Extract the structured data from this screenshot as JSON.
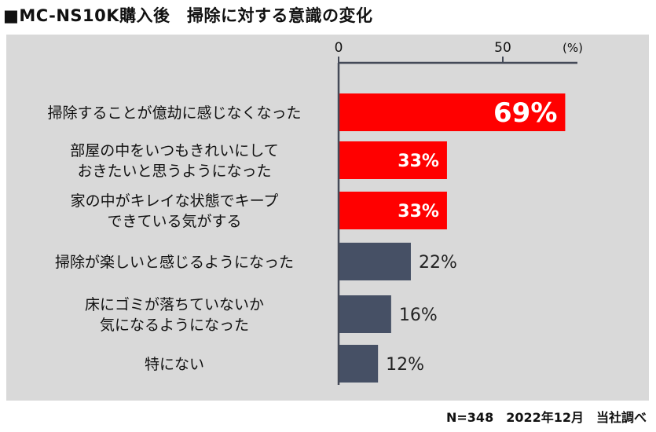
{
  "title": "■MC-NS10K購入後　掃除に対する意識の変化",
  "footnote": "N=348　2022年12月　当社調べ",
  "colors": {
    "highlight": "#ff0000",
    "normal": "#465065",
    "panel": "#d9d9d9"
  },
  "chart_data": {
    "type": "bar",
    "orientation": "horizontal",
    "unit_label": "(%)",
    "xlim": [
      0,
      50
    ],
    "xticks": [
      "0",
      "50"
    ],
    "categories": [
      [
        "掃除することが億劫に感じなくなった"
      ],
      [
        "部屋の中をいつもきれいにして",
        "おきたいと思うようになった"
      ],
      [
        "家の中がキレイな状態でキープ",
        "できている気がする"
      ],
      [
        "掃除が楽しいと感じるようになった"
      ],
      [
        "床にゴミが落ちていないか",
        "気になるようになった"
      ],
      [
        "特にない"
      ]
    ],
    "values": [
      69,
      33,
      33,
      22,
      16,
      12
    ],
    "value_labels": [
      "69%",
      "33%",
      "33%",
      "22%",
      "16%",
      "12%"
    ],
    "highlighted": [
      true,
      true,
      true,
      false,
      false,
      false
    ]
  }
}
